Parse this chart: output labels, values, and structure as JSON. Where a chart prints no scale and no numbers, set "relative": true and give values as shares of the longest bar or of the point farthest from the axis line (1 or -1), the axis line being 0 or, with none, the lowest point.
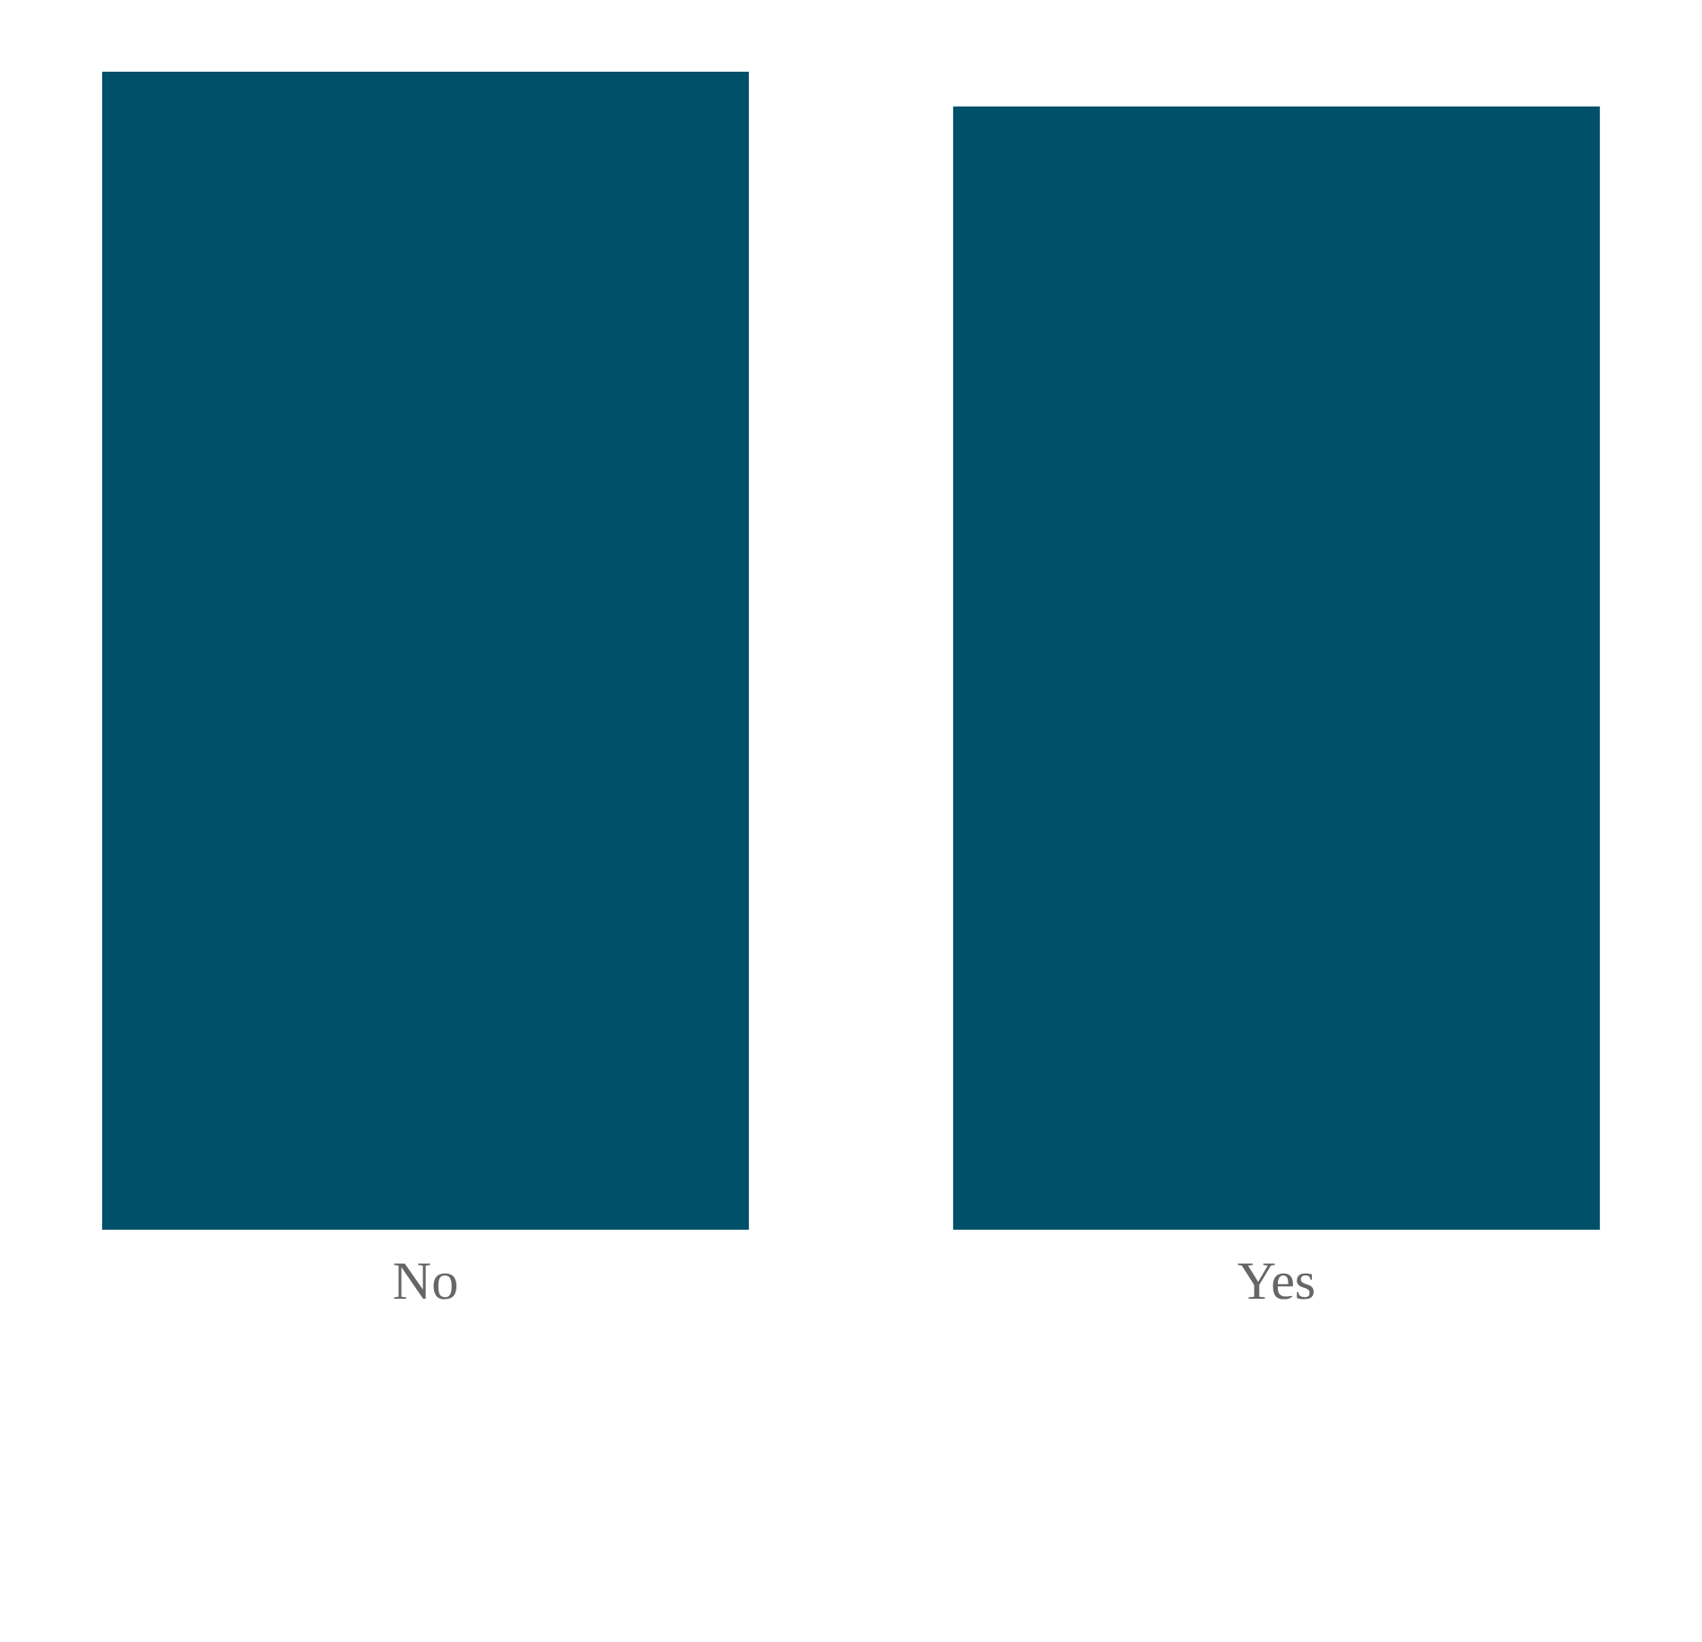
{
  "chart_data": {
    "type": "bar",
    "categories": [
      "No",
      "Yes"
    ],
    "values": [
      1,
      0.97
    ],
    "color": "#00506a",
    "relative": true
  }
}
